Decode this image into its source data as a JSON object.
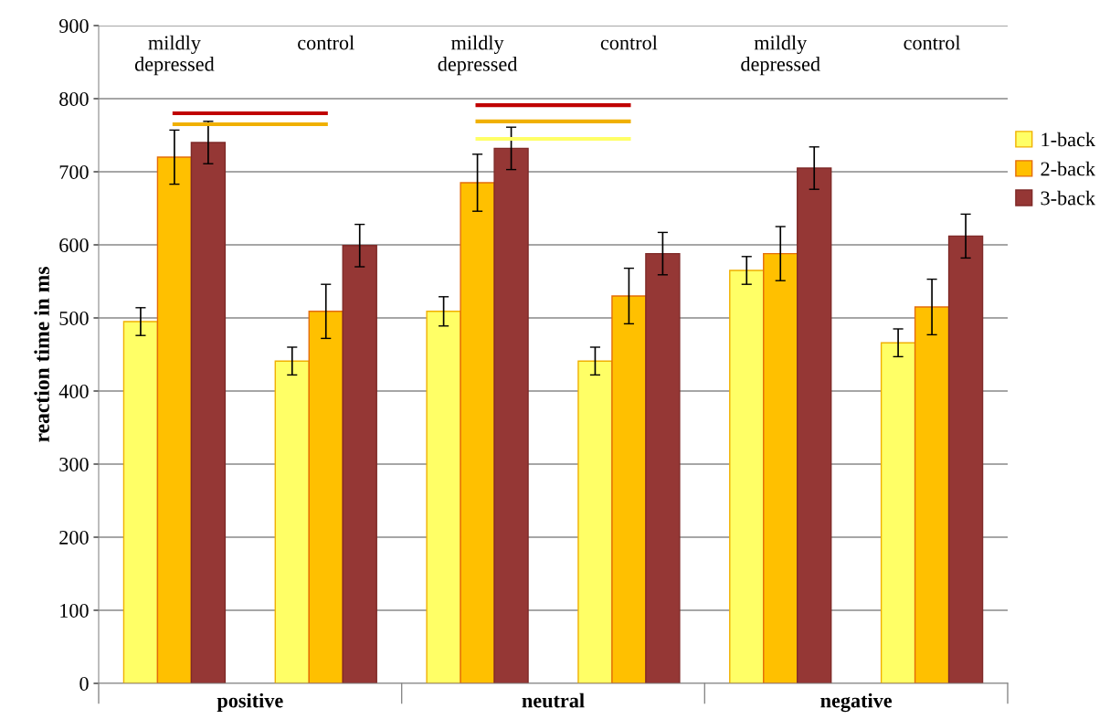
{
  "chart_data": {
    "type": "bar",
    "ylabel": "reaction time in ms",
    "categories": [
      "mildly\ndepressed",
      "control",
      "mildly\ndepressed",
      "control",
      "mildly\ndepressed",
      "control"
    ],
    "annotations": [
      "positive",
      "neutral",
      "negative"
    ],
    "series": [
      {
        "name": "1-back",
        "color": "#ffff66",
        "values": [
          495,
          441,
          509,
          441,
          565,
          466
        ],
        "errors": [
          19,
          19,
          20,
          19,
          19,
          19
        ]
      },
      {
        "name": "2-back",
        "color": "#ffc000",
        "values": [
          720,
          509,
          685,
          530,
          588,
          515
        ],
        "errors": [
          37,
          37,
          39,
          38,
          37,
          38
        ]
      },
      {
        "name": "3-back",
        "color": "#953735",
        "values": [
          740,
          599,
          732,
          588,
          705,
          612
        ],
        "errors": [
          29,
          29,
          29,
          29,
          29,
          30
        ]
      },
      {
        "type": "line",
        "color": "#f0b000",
        "values": [
          765,
          765,
          null,
          null,
          null,
          null
        ]
      },
      {
        "type": "line",
        "color": "#c00000",
        "values": [
          780,
          780,
          null,
          null,
          null,
          null
        ]
      },
      {
        "type": "line",
        "color": "#ffff66",
        "values": [
          null,
          null,
          745,
          745,
          null,
          null
        ]
      },
      {
        "type": "line",
        "color": "#f0b000",
        "values": [
          null,
          null,
          769,
          769,
          null,
          null
        ]
      },
      {
        "type": "line",
        "color": "#c00000",
        "values": [
          null,
          null,
          791,
          791,
          null,
          null
        ]
      }
    ],
    "ylim": [
      0,
      900
    ],
    "yticks": [
      0,
      100,
      200,
      300,
      400,
      500,
      600,
      700,
      800,
      900
    ],
    "grid": "y",
    "legend": "right"
  }
}
